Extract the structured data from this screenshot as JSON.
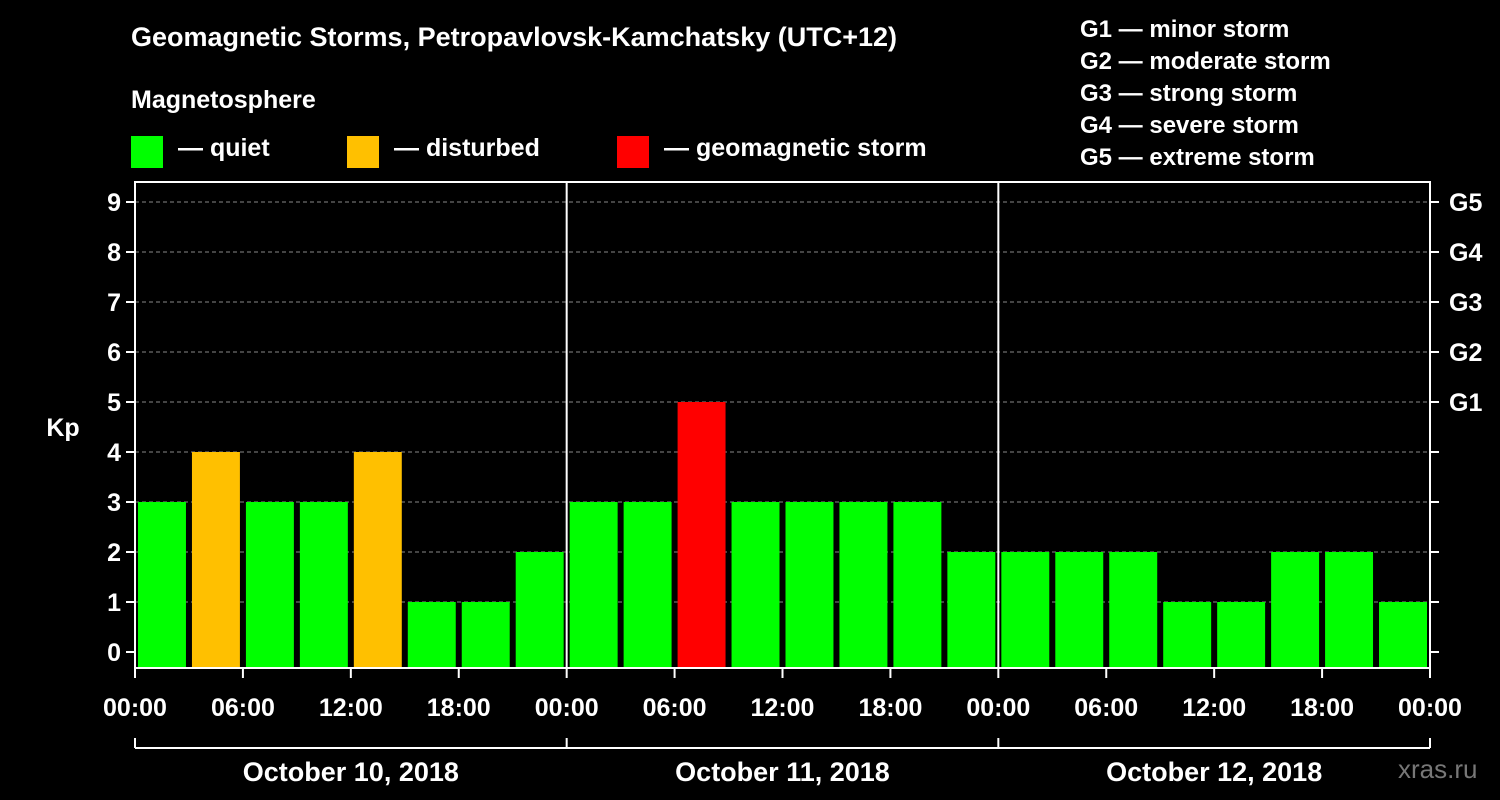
{
  "colors": {
    "quiet": "#00ff00",
    "disturbed": "#ffc000",
    "storm": "#ff0000",
    "background": "#000000",
    "axis": "#ffffff",
    "grid": "#888888"
  },
  "legend": {
    "magnetosphere_title": "Magnetosphere",
    "items": [
      {
        "label": "— quiet",
        "color": "#00ff00"
      },
      {
        "label": "— disturbed",
        "color": "#ffc000"
      },
      {
        "label": "— geomagnetic storm",
        "color": "#ff0000"
      }
    ]
  },
  "g_scale": [
    {
      "text": "G1 — minor storm"
    },
    {
      "text": "G2 — moderate storm"
    },
    {
      "text": "G3 — strong storm"
    },
    {
      "text": "G4 — severe storm"
    },
    {
      "text": "G5 — extreme storm"
    }
  ],
  "watermark": "xras.ru",
  "chart_data": {
    "type": "bar",
    "title": "Geomagnetic Storms, Petropavlovsk-Kamchatsky (UTC+12)",
    "ylabel": "Kp",
    "xlabel": "",
    "ylim": [
      0,
      9
    ],
    "y_ticks": [
      0,
      1,
      2,
      3,
      4,
      5,
      6,
      7,
      8,
      9
    ],
    "right_axis_labels": [
      {
        "kp": 5,
        "label": "G1"
      },
      {
        "kp": 6,
        "label": "G2"
      },
      {
        "kp": 7,
        "label": "G3"
      },
      {
        "kp": 8,
        "label": "G4"
      },
      {
        "kp": 9,
        "label": "G5"
      }
    ],
    "x_tick_labels": [
      "00:00",
      "06:00",
      "12:00",
      "18:00",
      "00:00",
      "06:00",
      "12:00",
      "18:00",
      "00:00",
      "06:00",
      "12:00",
      "18:00",
      "00:00"
    ],
    "days": [
      "October 10, 2018",
      "October 11, 2018",
      "October 12, 2018"
    ],
    "interval_hours": 3,
    "values": [
      3,
      4,
      3,
      3,
      4,
      1,
      1,
      2,
      3,
      3,
      5,
      3,
      3,
      3,
      3,
      2,
      2,
      2,
      2,
      1,
      1,
      2,
      2,
      1
    ],
    "categories": [
      "quiet",
      "disturbed",
      "quiet",
      "quiet",
      "disturbed",
      "quiet",
      "quiet",
      "quiet",
      "quiet",
      "quiet",
      "storm",
      "quiet",
      "quiet",
      "quiet",
      "quiet",
      "quiet",
      "quiet",
      "quiet",
      "quiet",
      "quiet",
      "quiet",
      "quiet",
      "quiet",
      "quiet"
    ],
    "grid": true
  }
}
